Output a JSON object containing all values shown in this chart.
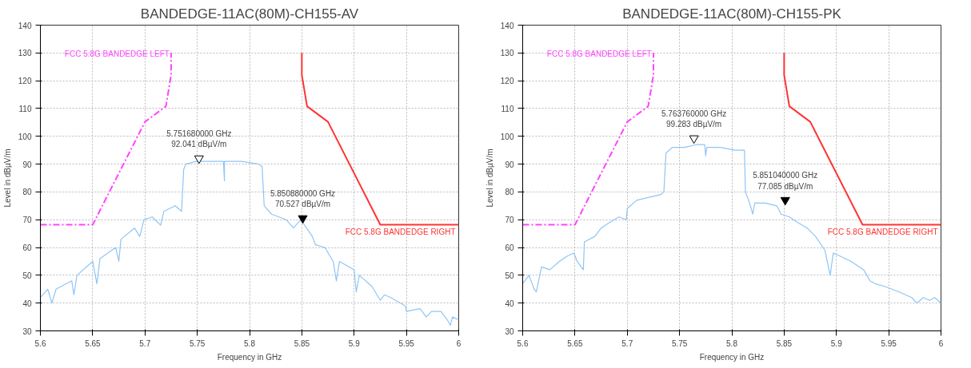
{
  "chart_data": [
    {
      "type": "line",
      "title": "BANDEDGE-11AC(80M)-CH155-AV",
      "xlabel": "Frequency in GHz",
      "ylabel": "Level in dBµV/m",
      "xlim": [
        5.6,
        6.0
      ],
      "ylim": [
        30,
        140
      ],
      "xticks": [
        5.6,
        5.65,
        5.7,
        5.75,
        5.8,
        5.85,
        5.9,
        5.95,
        6
      ],
      "yticks": [
        30,
        40,
        50,
        60,
        70,
        80,
        90,
        100,
        110,
        120,
        130,
        140
      ],
      "grid": true,
      "series": [
        {
          "color": "#8ec5f5",
          "x": [
            5.6,
            5.607,
            5.611,
            5.615,
            5.63,
            5.632,
            5.635,
            5.65,
            5.654,
            5.657,
            5.672,
            5.675,
            5.677,
            5.69,
            5.695,
            5.699,
            5.707,
            5.715,
            5.718,
            5.729,
            5.735,
            5.737,
            5.739,
            5.749,
            5.764,
            5.775,
            5.776,
            5.776,
            5.792,
            5.809,
            5.812,
            5.814,
            5.821,
            5.835,
            5.842,
            5.849,
            5.86,
            5.863,
            5.872,
            5.88,
            5.883,
            5.886,
            5.9,
            5.902,
            5.905,
            5.917,
            5.925,
            5.929,
            5.935,
            5.949,
            5.95,
            5.963,
            5.969,
            5.974,
            5.983,
            5.989,
            5.992,
            5.994,
            6.0
          ],
          "values": [
            42,
            45,
            40,
            45,
            48,
            43,
            50,
            55,
            47,
            56,
            60,
            55,
            63,
            67,
            64,
            70,
            71,
            68,
            73,
            75,
            73,
            88,
            90,
            91,
            91,
            91,
            84,
            91,
            91,
            90,
            89,
            75,
            72,
            70,
            67,
            70,
            64,
            61,
            60,
            55,
            48,
            55,
            52,
            44,
            50,
            46,
            41,
            43,
            42,
            39,
            37,
            38,
            35,
            37,
            37,
            34,
            32,
            35,
            34
          ]
        },
        {
          "name": "FCC 5.8G BANDEDGE LEFT",
          "color": "#ff44ff",
          "line_style": "dashed",
          "x": [
            5.6,
            5.65,
            5.7,
            5.72,
            5.725,
            5.725
          ],
          "values": [
            68.2,
            68.2,
            105.2,
            110.8,
            122,
            130
          ]
        },
        {
          "name": "FCC 5.8G BANDEDGE RIGHT",
          "color": "#ff3333",
          "x": [
            5.85,
            5.85,
            5.855,
            5.875,
            5.925,
            6.0
          ],
          "values": [
            130,
            122,
            110.8,
            105.2,
            68.2,
            68.2
          ]
        },
        {
          "type": "scatter",
          "marker": "triangle",
          "color": "#ffffff",
          "x": [
            5.75168
          ],
          "values": [
            92.041
          ]
        },
        {
          "type": "scatter",
          "marker": "triangle",
          "color": "#000000",
          "x": [
            5.85088
          ],
          "values": [
            70.527
          ]
        }
      ],
      "annotations": [
        {
          "text": "5.751680000 GHz\n92.041 dBµV/m",
          "x": 5.75168,
          "y": 92.041
        },
        {
          "text": "5.850880000 GHz\n70.527 dBµV/m",
          "x": 5.85088,
          "y": 70.527
        }
      ]
    },
    {
      "type": "line",
      "title": "BANDEDGE-11AC(80M)-CH155-PK",
      "xlabel": "Frequency in GHz",
      "ylabel": "Level in dBµV/m",
      "xlim": [
        5.6,
        6.0
      ],
      "ylim": [
        30,
        140
      ],
      "xticks": [
        5.6,
        5.65,
        5.7,
        5.75,
        5.8,
        5.85,
        5.9,
        5.95,
        6
      ],
      "yticks": [
        30,
        40,
        50,
        60,
        70,
        80,
        90,
        100,
        110,
        120,
        130,
        140
      ],
      "grid": true,
      "series": [
        {
          "color": "#8ec5f5",
          "x": [
            5.6,
            5.606,
            5.611,
            5.613,
            5.618,
            5.626,
            5.635,
            5.643,
            5.649,
            5.652,
            5.658,
            5.659,
            5.669,
            5.675,
            5.683,
            5.692,
            5.699,
            5.7,
            5.709,
            5.72,
            5.732,
            5.735,
            5.737,
            5.743,
            5.755,
            5.766,
            5.774,
            5.775,
            5.776,
            5.789,
            5.803,
            5.812,
            5.813,
            5.817,
            5.82,
            5.822,
            5.832,
            5.843,
            5.847,
            5.855,
            5.863,
            5.872,
            5.88,
            5.889,
            5.894,
            5.897,
            5.903,
            5.914,
            5.926,
            5.932,
            5.937,
            5.946,
            5.96,
            5.972,
            5.977,
            5.983,
            5.989,
            5.994,
            6.0
          ],
          "values": [
            47,
            50,
            45,
            44,
            53,
            52,
            55,
            57,
            58,
            55,
            52,
            62,
            64,
            67,
            69,
            71,
            70,
            74,
            77,
            78,
            79,
            80,
            94,
            96,
            96,
            97,
            97,
            93,
            96,
            96,
            95,
            95,
            80,
            76,
            72,
            76,
            76,
            75,
            72,
            71,
            69,
            67,
            64,
            59,
            50,
            58,
            57,
            55,
            52,
            48,
            47,
            46,
            44,
            42,
            40,
            42,
            41,
            42,
            40
          ]
        },
        {
          "name": "FCC 5.8G BANDEDGE LEFT",
          "color": "#ff44ff",
          "line_style": "dashed",
          "x": [
            5.6,
            5.65,
            5.7,
            5.72,
            5.725,
            5.725
          ],
          "values": [
            68.2,
            68.2,
            105.2,
            110.8,
            122,
            130
          ]
        },
        {
          "name": "FCC 5.8G BANDEDGE RIGHT",
          "color": "#ff3333",
          "x": [
            5.85,
            5.85,
            5.855,
            5.875,
            5.925,
            6.0
          ],
          "values": [
            130,
            122,
            110.8,
            105.2,
            68.2,
            68.2
          ]
        },
        {
          "type": "scatter",
          "marker": "triangle",
          "color": "#ffffff",
          "x": [
            5.76376
          ],
          "values": [
            99.283
          ]
        },
        {
          "type": "scatter",
          "marker": "triangle",
          "color": "#000000",
          "x": [
            5.85104
          ],
          "values": [
            77.085
          ]
        }
      ],
      "annotations": [
        {
          "text": "5.763760000 GHz\n99.283 dBµV/m",
          "x": 5.76376,
          "y": 99.283
        },
        {
          "text": "5.851040000 GHz\n77.085 dBµV/m",
          "x": 5.85104,
          "y": 77.085
        }
      ]
    }
  ]
}
